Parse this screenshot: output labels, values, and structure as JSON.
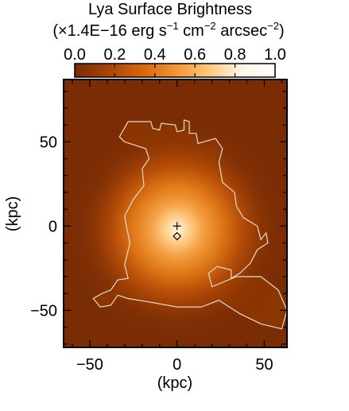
{
  "chart_data": {
    "type": "heatmap",
    "title": "Lya Surface Brightness",
    "colorbar": {
      "unit_prefix": "(×1.4E−16 erg s",
      "unit_exp1": "−1",
      "unit_mid": " cm",
      "unit_exp2": "−2",
      "unit_tail": " arcsec",
      "unit_exp3": "−2",
      "unit_close": ")",
      "range": [
        0.0,
        1.0
      ],
      "ticks": [
        "0.0",
        "0.2",
        "0.4",
        "0.6",
        "0.8",
        "1.0"
      ],
      "colormap": [
        "#7a2c05",
        "#a84306",
        "#d7650c",
        "#f29335",
        "#ffc87a",
        "#fff6e6",
        "#ffffff"
      ]
    },
    "xlabel": "(kpc)",
    "ylabel": "(kpc)",
    "xlim": [
      -65,
      63
    ],
    "ylim": [
      -72,
      87
    ],
    "xticks": [
      "−50",
      "0",
      "50"
    ],
    "yticks": [
      "50",
      "0",
      "−50"
    ],
    "background_level": 0.07,
    "peak": {
      "x": 0,
      "y": -2,
      "level": 1.0
    },
    "markers": [
      {
        "name": "plus",
        "x": 0,
        "y": 0
      },
      {
        "name": "diamond",
        "x": 0,
        "y": -6
      }
    ],
    "contour_color": "#e6dcc8",
    "contour_outline": [
      [
        -28,
        62
      ],
      [
        -15,
        62
      ],
      [
        -14,
        58
      ],
      [
        -10,
        57
      ],
      [
        -9,
        61
      ],
      [
        -1,
        60
      ],
      [
        0,
        56
      ],
      [
        4,
        57
      ],
      [
        4,
        63
      ],
      [
        7,
        62
      ],
      [
        7,
        55
      ],
      [
        11,
        55
      ],
      [
        12,
        49
      ],
      [
        22,
        52
      ],
      [
        26,
        46
      ],
      [
        24,
        38
      ],
      [
        26,
        26
      ],
      [
        33,
        20
      ],
      [
        34,
        12
      ],
      [
        38,
        5
      ],
      [
        46,
        0
      ],
      [
        48,
        -8
      ],
      [
        51,
        -4
      ],
      [
        52,
        -10
      ],
      [
        46,
        -14
      ],
      [
        42,
        -22
      ],
      [
        36,
        -28
      ],
      [
        31,
        -31
      ],
      [
        31,
        -26
      ],
      [
        23,
        -24
      ],
      [
        18,
        -28
      ],
      [
        20,
        -36
      ],
      [
        34,
        -30
      ],
      [
        48,
        -30
      ],
      [
        58,
        -38
      ],
      [
        63,
        -50
      ],
      [
        60,
        -61
      ],
      [
        48,
        -58
      ],
      [
        36,
        -52
      ],
      [
        24,
        -44
      ],
      [
        14,
        -48
      ],
      [
        0,
        -48
      ],
      [
        -16,
        -45
      ],
      [
        -28,
        -43
      ],
      [
        -34,
        -41
      ],
      [
        -38,
        -47
      ],
      [
        -44,
        -48
      ],
      [
        -48,
        -43
      ],
      [
        -43,
        -40
      ],
      [
        -38,
        -38
      ],
      [
        -34,
        -32
      ],
      [
        -28,
        -31
      ],
      [
        -30,
        -23
      ],
      [
        -27,
        -10
      ],
      [
        -29,
        0
      ],
      [
        -30,
        6
      ],
      [
        -25,
        16
      ],
      [
        -19,
        24
      ],
      [
        -20,
        34
      ],
      [
        -16,
        40
      ],
      [
        -18,
        46
      ],
      [
        -30,
        50
      ],
      [
        -33,
        53
      ]
    ]
  }
}
